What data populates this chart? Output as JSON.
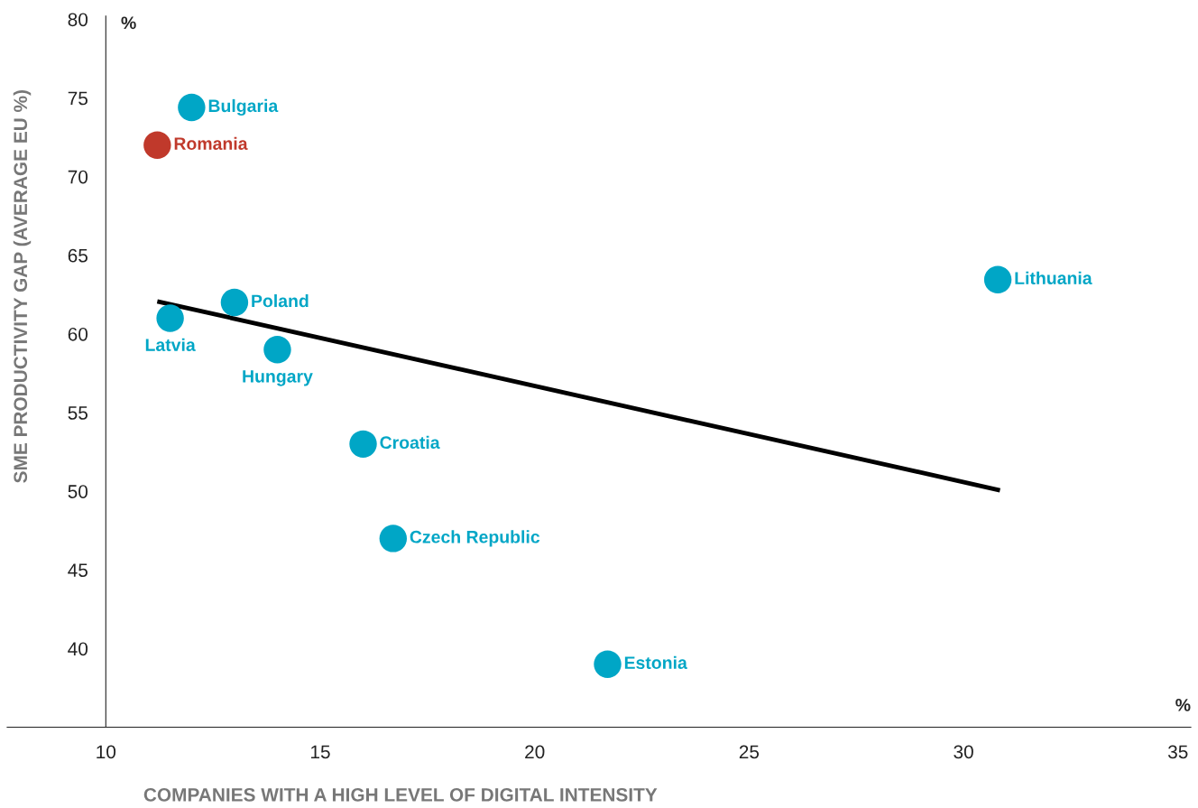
{
  "chart_data": {
    "type": "scatter",
    "xlabel": "COMPANIES WITH A HIGH LEVEL OF DIGITAL INTENSITY",
    "ylabel": "SME PRODUCTIVITY GAP (AVERAGE EU %)",
    "xlim": [
      7.7,
      35.3
    ],
    "ylim": [
      35,
      80.2
    ],
    "xticks": [
      10,
      15,
      20,
      25,
      30,
      35
    ],
    "yticks": [
      40,
      45,
      50,
      55,
      60,
      65,
      70,
      75,
      80
    ],
    "grid": false,
    "legend": false,
    "marker": "circle",
    "annotations": [
      "%",
      "%"
    ],
    "series": [
      {
        "name": "Bulgaria",
        "color": "#00a6c6",
        "x": [
          12.0
        ],
        "values": [
          74.4
        ]
      },
      {
        "name": "Romania",
        "color": "#c0392b",
        "x": [
          11.2
        ],
        "values": [
          72.0
        ]
      },
      {
        "name": "Latvia",
        "color": "#00a6c6",
        "x": [
          11.5
        ],
        "values": [
          61.0
        ]
      },
      {
        "name": "Poland",
        "color": "#00a6c6",
        "x": [
          13.0
        ],
        "values": [
          62.0
        ]
      },
      {
        "name": "Hungary",
        "color": "#00a6c6",
        "x": [
          14.0
        ],
        "values": [
          59.0
        ]
      },
      {
        "name": "Croatia",
        "color": "#00a6c6",
        "x": [
          16.0
        ],
        "values": [
          53.0
        ]
      },
      {
        "name": "Czech Republic",
        "color": "#00a6c6",
        "x": [
          16.7
        ],
        "values": [
          47.0
        ]
      },
      {
        "name": "Estonia",
        "color": "#00a6c6",
        "x": [
          21.7
        ],
        "values": [
          39.0
        ]
      },
      {
        "name": "Lithuania",
        "color": "#00a6c6",
        "x": [
          30.8
        ],
        "values": [
          63.45
        ]
      },
      {
        "type": "line",
        "color": "#000000",
        "x": [
          11.2,
          30.85
        ],
        "values": [
          62.07,
          50.06
        ],
        "marker": "none"
      }
    ]
  }
}
